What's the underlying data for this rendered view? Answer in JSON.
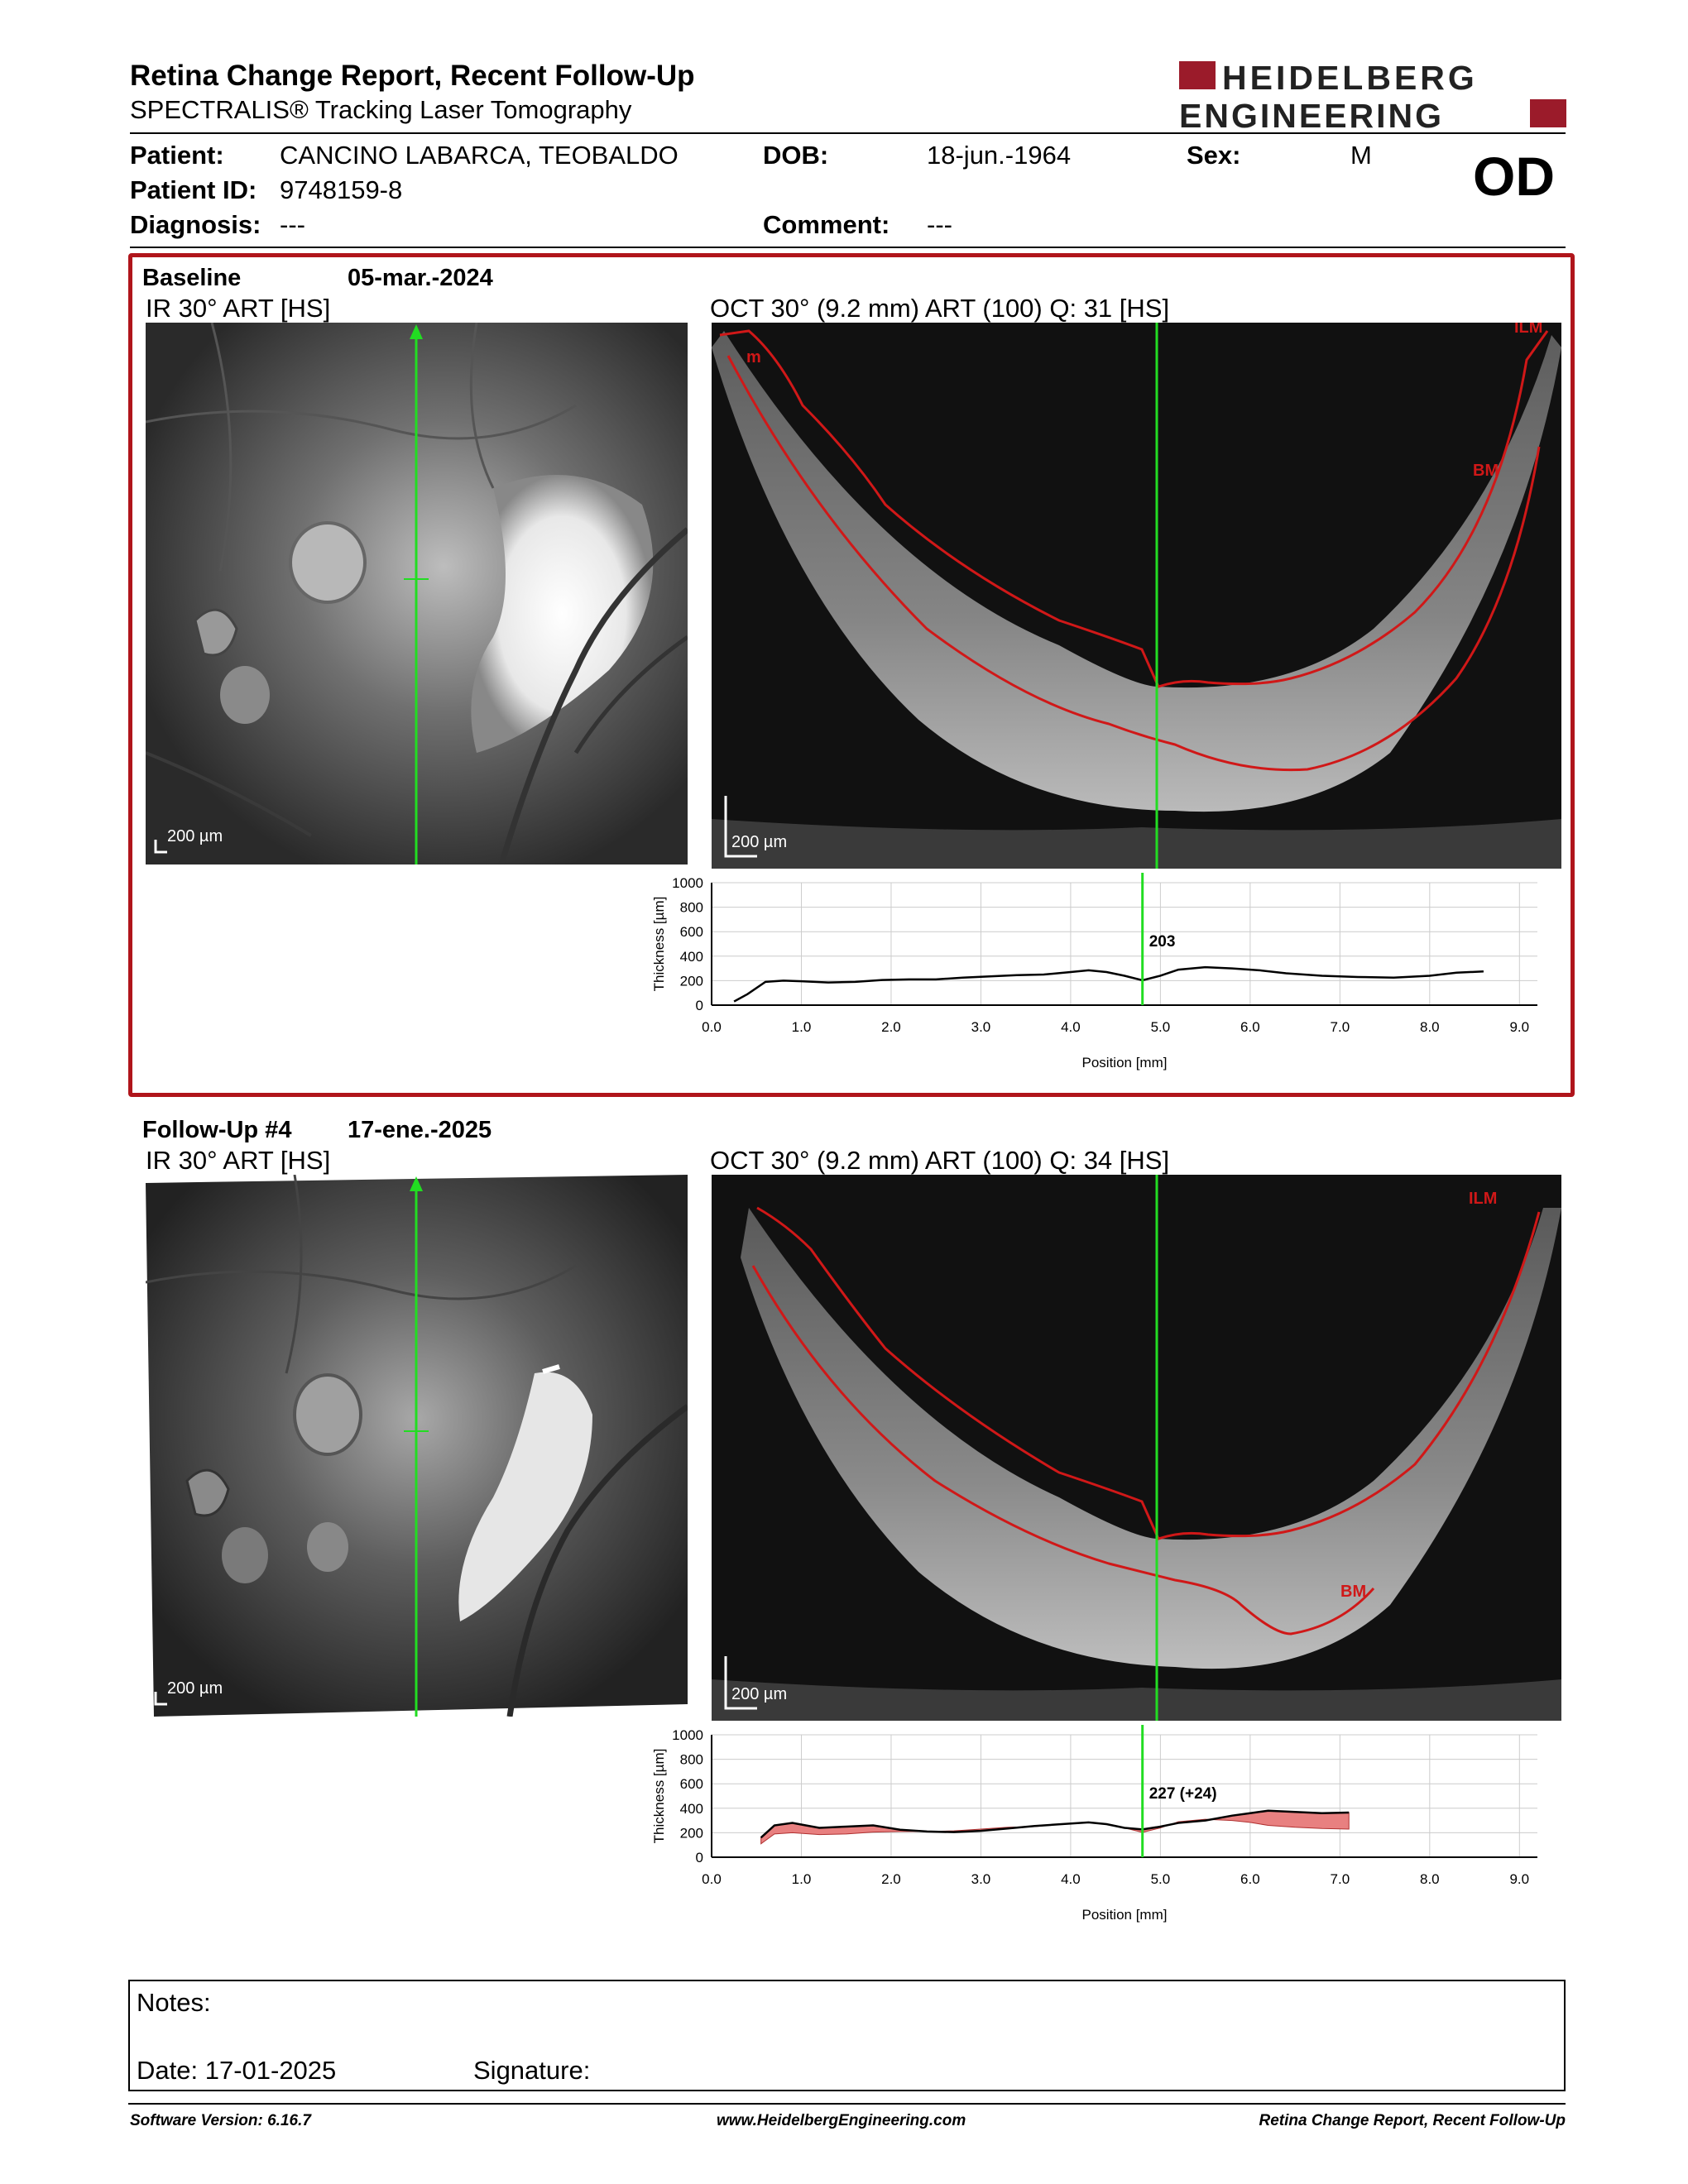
{
  "header": {
    "title": "Retina Change Report, Recent Follow-Up",
    "subtitle": "SPECTRALIS® Tracking Laser Tomography",
    "logo_line1": "HEIDELBERG",
    "logo_line2": "ENGINEERING",
    "eye": "OD"
  },
  "patient": {
    "patient_label": "Patient:",
    "patient_value": "CANCINO LABARCA, TEOBALDO",
    "dob_label": "DOB:",
    "dob_value": "18-jun.-1964",
    "sex_label": "Sex:",
    "sex_value": "M",
    "id_label": "Patient ID:",
    "id_value": "9748159-8",
    "diagnosis_label": "Diagnosis:",
    "diagnosis_value": "---",
    "comment_label": "Comment:",
    "comment_value": "---"
  },
  "baseline": {
    "label": "Baseline",
    "date": "05-mar.-2024",
    "ir_caption": "IR 30° ART [HS]",
    "oct_caption": "OCT 30° (9.2 mm) ART (100) Q: 31 [HS]",
    "scale_ir": "200 µm",
    "scale_oct": "200 µm",
    "ilm_label": "ILM",
    "ilm_label_left": "m",
    "bm_label": "BM"
  },
  "followup": {
    "label": "Follow-Up #4",
    "date": "17-ene.-2025",
    "ir_caption": "IR 30° ART [HS]",
    "oct_caption": "OCT 30° (9.2 mm) ART (100) Q: 34 [HS]",
    "scale_ir": "200 µm",
    "scale_oct": "200 µm",
    "ilm_label": "ILM",
    "bm_label": "BM"
  },
  "chart_data": [
    {
      "type": "line",
      "name_ref": "baseline-thickness",
      "xlabel": "Position [mm]",
      "ylabel": "Thickness [µm]",
      "xlim": [
        0,
        9.2
      ],
      "ylim": [
        0,
        1000
      ],
      "xticks": [
        "0.0",
        "1.0",
        "2.0",
        "3.0",
        "4.0",
        "5.0",
        "6.0",
        "7.0",
        "8.0",
        "9.0"
      ],
      "yticks": [
        "0",
        "200",
        "400",
        "600",
        "800",
        "1000"
      ],
      "grid": true,
      "cursor_x": 4.8,
      "cursor_label": "203",
      "series": [
        {
          "x": [
            0.25,
            0.4,
            0.6,
            0.8,
            1.0,
            1.3,
            1.6,
            1.9,
            2.2,
            2.5,
            2.8,
            3.1,
            3.4,
            3.7,
            4.0,
            4.2,
            4.4,
            4.6,
            4.8,
            5.0,
            5.2,
            5.5,
            5.8,
            6.1,
            6.4,
            6.8,
            7.2,
            7.6,
            8.0,
            8.3,
            8.6
          ],
          "y": [
            30,
            90,
            190,
            200,
            195,
            185,
            190,
            205,
            210,
            210,
            225,
            235,
            245,
            250,
            270,
            285,
            270,
            240,
            203,
            240,
            290,
            310,
            300,
            285,
            260,
            240,
            230,
            225,
            240,
            265,
            275
          ]
        }
      ]
    },
    {
      "type": "line",
      "name_ref": "followup-thickness",
      "xlabel": "Position [mm]",
      "ylabel": "Thickness [µm]",
      "xlim": [
        0,
        9.2
      ],
      "ylim": [
        0,
        1000
      ],
      "xticks": [
        "0.0",
        "1.0",
        "2.0",
        "3.0",
        "4.0",
        "5.0",
        "6.0",
        "7.0",
        "8.0",
        "9.0"
      ],
      "yticks": [
        "0",
        "200",
        "400",
        "600",
        "800",
        "1000"
      ],
      "grid": true,
      "cursor_x": 4.8,
      "cursor_label": "227 (+24)",
      "series": [
        {
          "x": [
            0.55,
            0.7,
            0.9,
            1.2,
            1.5,
            1.8,
            2.1,
            2.4,
            2.7,
            3.0,
            3.3,
            3.6,
            3.9,
            4.2,
            4.4,
            4.6,
            4.8,
            5.0,
            5.2,
            5.5,
            5.8,
            6.0,
            6.2,
            6.5,
            6.8,
            7.1
          ],
          "y": [
            160,
            260,
            280,
            240,
            250,
            260,
            225,
            210,
            205,
            215,
            235,
            255,
            270,
            285,
            270,
            240,
            227,
            250,
            280,
            300,
            340,
            360,
            380,
            370,
            360,
            365
          ]
        },
        {
          "x": [
            0.55,
            0.7,
            0.9,
            1.2,
            1.5,
            1.8,
            2.1,
            2.4,
            2.7,
            3.0,
            3.3,
            3.6,
            3.9,
            4.2,
            4.4,
            4.6,
            4.8,
            5.0,
            5.2,
            5.5,
            5.8,
            6.0,
            6.2,
            6.5,
            6.8,
            7.1
          ],
          "y": [
            110,
            190,
            200,
            185,
            190,
            205,
            210,
            210,
            215,
            230,
            245,
            250,
            270,
            285,
            270,
            240,
            203,
            240,
            290,
            310,
            300,
            285,
            260,
            245,
            235,
            230
          ]
        }
      ]
    }
  ],
  "notes": {
    "notes_label": "Notes:",
    "date_label": "Date: 17-01-2025",
    "signature_label": "Signature:"
  },
  "footer": {
    "software": "Software Version: 6.16.7",
    "website": "www.HeidelbergEngineering.com",
    "report": "Retina Change Report, Recent Follow-Up"
  },
  "colors": {
    "brand_red": "#9b1b2a",
    "frame_red": "#b0151b",
    "scan_green": "#22dd22",
    "segment_red": "#d01818",
    "diff_fill": "#e88080"
  }
}
